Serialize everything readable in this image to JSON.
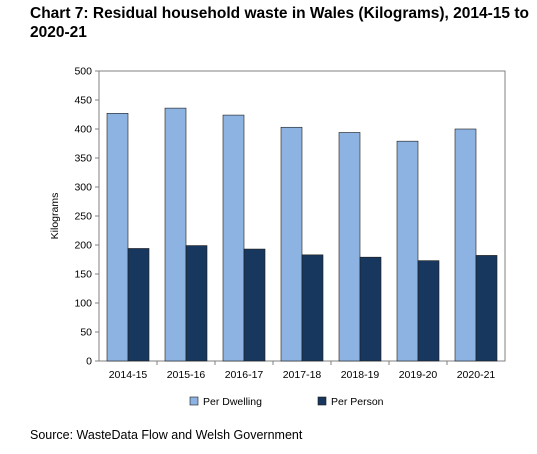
{
  "chart_data": {
    "type": "bar",
    "title": "Chart 7: Residual household waste in Wales (Kilograms), 2014-15 to 2020-21",
    "xlabel": "",
    "ylabel": "Kilograms",
    "ylim": [
      0,
      500
    ],
    "yticks": [
      0,
      50,
      100,
      150,
      200,
      250,
      300,
      350,
      400,
      450,
      500
    ],
    "grid": false,
    "legend": "bottom",
    "categories": [
      "2014-15",
      "2015-16",
      "2016-17",
      "2017-18",
      "2018-19",
      "2019-20",
      "2020-21"
    ],
    "series": [
      {
        "name": "Per Dwelling",
        "color": "#8db3e2",
        "values": [
          427,
          436,
          424,
          403,
          394,
          379,
          400
        ]
      },
      {
        "name": "Per Person",
        "color": "#17375e",
        "values": [
          194,
          199,
          193,
          183,
          179,
          173,
          182
        ]
      }
    ]
  },
  "source": "Source: WasteData Flow and Welsh Government"
}
